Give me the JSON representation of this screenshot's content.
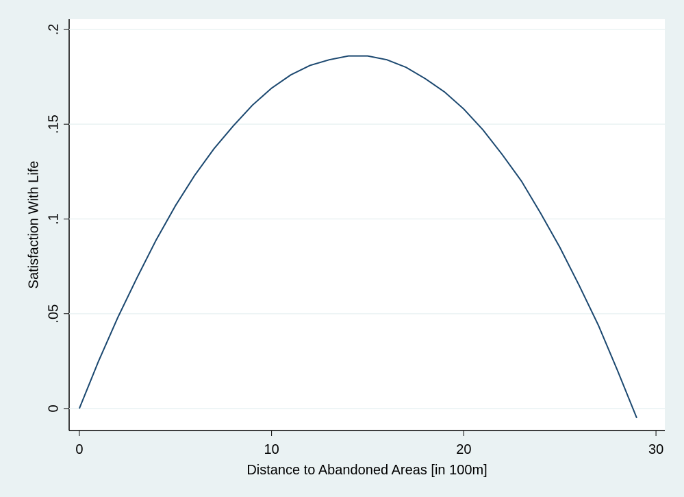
{
  "chart_data": {
    "type": "line",
    "x_label": "Distance to Abandoned Areas [in 100m]",
    "y_label": "Satisfaction With Life",
    "x": [
      0,
      1,
      2,
      3,
      4,
      5,
      6,
      7,
      8,
      9,
      10,
      11,
      12,
      13,
      14,
      15,
      16,
      17,
      18,
      19,
      20,
      21,
      22,
      23,
      24,
      25,
      26,
      27,
      28,
      29
    ],
    "series": [
      {
        "color": "#1a476f",
        "values": [
          0,
          0.025,
          0.048,
          0.069,
          0.089,
          0.107,
          0.123,
          0.137,
          0.149,
          0.16,
          0.169,
          0.176,
          0.181,
          0.184,
          0.186,
          0.186,
          0.184,
          0.18,
          0.174,
          0.167,
          0.158,
          0.147,
          0.134,
          0.12,
          0.103,
          0.085,
          0.065,
          0.044,
          0.02,
          -0.005
        ]
      }
    ],
    "xlim": [
      -0.53,
      30.46
    ],
    "xticks": [
      0,
      10,
      20,
      30
    ],
    "ylim": [
      -0.0116,
      0.2054
    ],
    "yticks": [
      0,
      {
        "value": 0.05,
        "label": ".05"
      },
      {
        "value": 0.1,
        "label": ".1"
      },
      {
        "value": 0.15,
        "label": ".15"
      },
      {
        "value": 0.2,
        "label": ".2"
      }
    ],
    "grid": true
  }
}
